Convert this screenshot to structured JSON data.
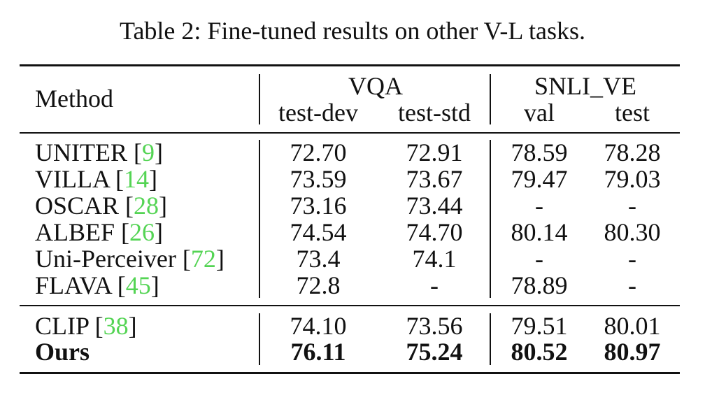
{
  "caption": "Table 2: Fine-tuned results on other V-L tasks.",
  "header": {
    "method": "Method",
    "groups": [
      "VQA",
      "SNLI_VE"
    ],
    "subcols": [
      "test-dev",
      "test-std",
      "val",
      "test"
    ]
  },
  "rows_top": [
    {
      "name": "UNITER [",
      "ref": "9",
      "close": "]",
      "vals": [
        "72.70",
        "72.91",
        "78.59",
        "78.28"
      ]
    },
    {
      "name": "VILLA [",
      "ref": "14",
      "close": "]",
      "vals": [
        "73.59",
        "73.67",
        "79.47",
        "79.03"
      ]
    },
    {
      "name": "OSCAR [",
      "ref": "28",
      "close": "]",
      "vals": [
        "73.16",
        "73.44",
        "-",
        "-"
      ]
    },
    {
      "name": "ALBEF [",
      "ref": "26",
      "close": "]",
      "vals": [
        "74.54",
        "74.70",
        "80.14",
        "80.30"
      ]
    },
    {
      "name": "Uni-Perceiver [",
      "ref": "72",
      "close": "]",
      "vals": [
        "73.4",
        "74.1",
        "-",
        "-"
      ]
    },
    {
      "name": "FLAVA [",
      "ref": "45",
      "close": "]",
      "vals": [
        "72.8",
        "-",
        "78.89",
        "-"
      ]
    }
  ],
  "rows_bottom": [
    {
      "name": "CLIP [",
      "ref": "38",
      "close": "]",
      "vals": [
        "74.10",
        "73.56",
        "79.51",
        "80.01"
      ]
    },
    {
      "name": "Ours",
      "ref": "",
      "close": "",
      "vals": [
        "76.11",
        "75.24",
        "80.52",
        "80.97"
      ],
      "bold": true
    }
  ]
}
